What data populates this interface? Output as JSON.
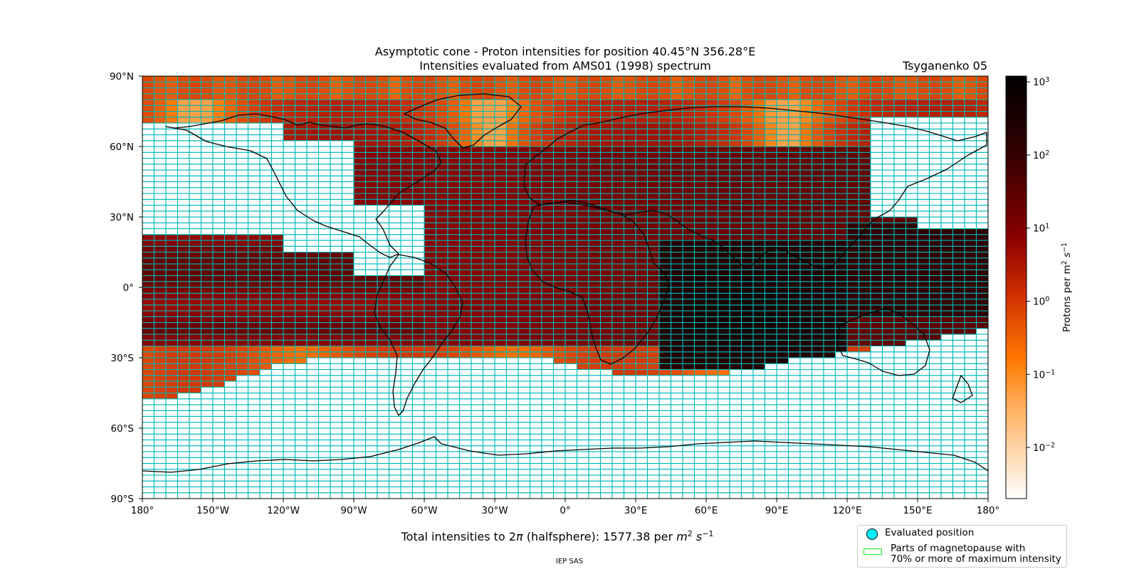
{
  "figure": {
    "title_line1": "Asymptotic cone - Proton intensities for position 40.45°N 356.28°E",
    "title_line2": "Intensities evaluated from AMS01 (1998) spectrum",
    "model": "Tsyganenko 05",
    "total_prefix": "Total intensities to 2",
    "total_pi": "π",
    "total_mid": " (halfsphere): 1577.38 per ",
    "total_unit_m": "m",
    "total_unit_m_exp": "2",
    "total_unit_s": "s",
    "total_unit_s_exp": "−1",
    "footer": "IEP SAS"
  },
  "legend": {
    "evaluated": "Evaluated position",
    "magnetopause_line1": "Parts of magnetopause with",
    "magnetopause_line2": "70% or more of maximum intensity"
  },
  "colorbar": {
    "label": "Protons per m",
    "label_exp": "2",
    "label_s": " s",
    "label_s_exp": "−1",
    "ticks": [
      {
        "value": 0.01,
        "label_base": "10",
        "label_exp": "−2"
      },
      {
        "value": 0.1,
        "label_base": "10",
        "label_exp": "−1"
      },
      {
        "value": 1,
        "label_base": "10",
        "label_exp": "0"
      },
      {
        "value": 10,
        "label_base": "10",
        "label_exp": "1"
      },
      {
        "value": 100,
        "label_base": "10",
        "label_exp": "2"
      },
      {
        "value": 1000,
        "label_base": "10",
        "label_exp": "3"
      }
    ],
    "min": 0.002,
    "max": 1200,
    "scale": "log",
    "colors": [
      "#ffffff",
      "#ffb66a",
      "#ff7800",
      "#d03000",
      "#8a0000",
      "#3a0000",
      "#000000"
    ]
  },
  "chart_data": {
    "type": "heatmap",
    "projection": "equirectangular world map (longitude vs latitude), coastlines overlay",
    "xlim": [
      -180,
      180
    ],
    "ylim": [
      -90,
      90
    ],
    "x_ticks": [
      -180,
      -150,
      -120,
      -90,
      -60,
      -30,
      0,
      30,
      60,
      90,
      120,
      150,
      180
    ],
    "x_tick_labels": [
      "180°",
      "150°W",
      "120°W",
      "90°W",
      "60°W",
      "30°W",
      "0°",
      "30°E",
      "60°E",
      "90°E",
      "120°E",
      "150°E",
      "180°"
    ],
    "y_ticks": [
      -90,
      -60,
      -30,
      0,
      30,
      60,
      90
    ],
    "y_tick_labels": [
      "90°S",
      "60°S",
      "30°S",
      "0°",
      "30°N",
      "60°N",
      "90°N"
    ],
    "grid_cell_deg": [
      5,
      2.5
    ],
    "cell_outline_color": "#00b8b8",
    "colorscale": "log, white to orange to dark red to black",
    "evaluated_position": {
      "lat": 40.45,
      "lon": 356.28
    },
    "intensity_summary": [
      {
        "region": "polar cap, lat 80 to 90, all longitudes",
        "value": 0.3
      },
      {
        "region": "northern high latitudes, lon -120 to 40",
        "value": 3
      },
      {
        "region": "northern latitudes, lon 40 to 120",
        "value": 8
      },
      {
        "region": "tropics, lon -180 to -60",
        "value": 20
      },
      {
        "region": "Africa / Atlantic, lon -30 to 40, lat -20 to 20",
        "value": 30
      },
      {
        "region": "Indian Ocean / Asia, lon 50 to 110, lat -30 to 10",
        "value": 400
      },
      {
        "region": "western Pacific, lon 120 to 180, lat -10 to 25",
        "value": 150
      },
      {
        "region": "southern edge, lat -30 to -45",
        "value": 0.5
      }
    ]
  }
}
